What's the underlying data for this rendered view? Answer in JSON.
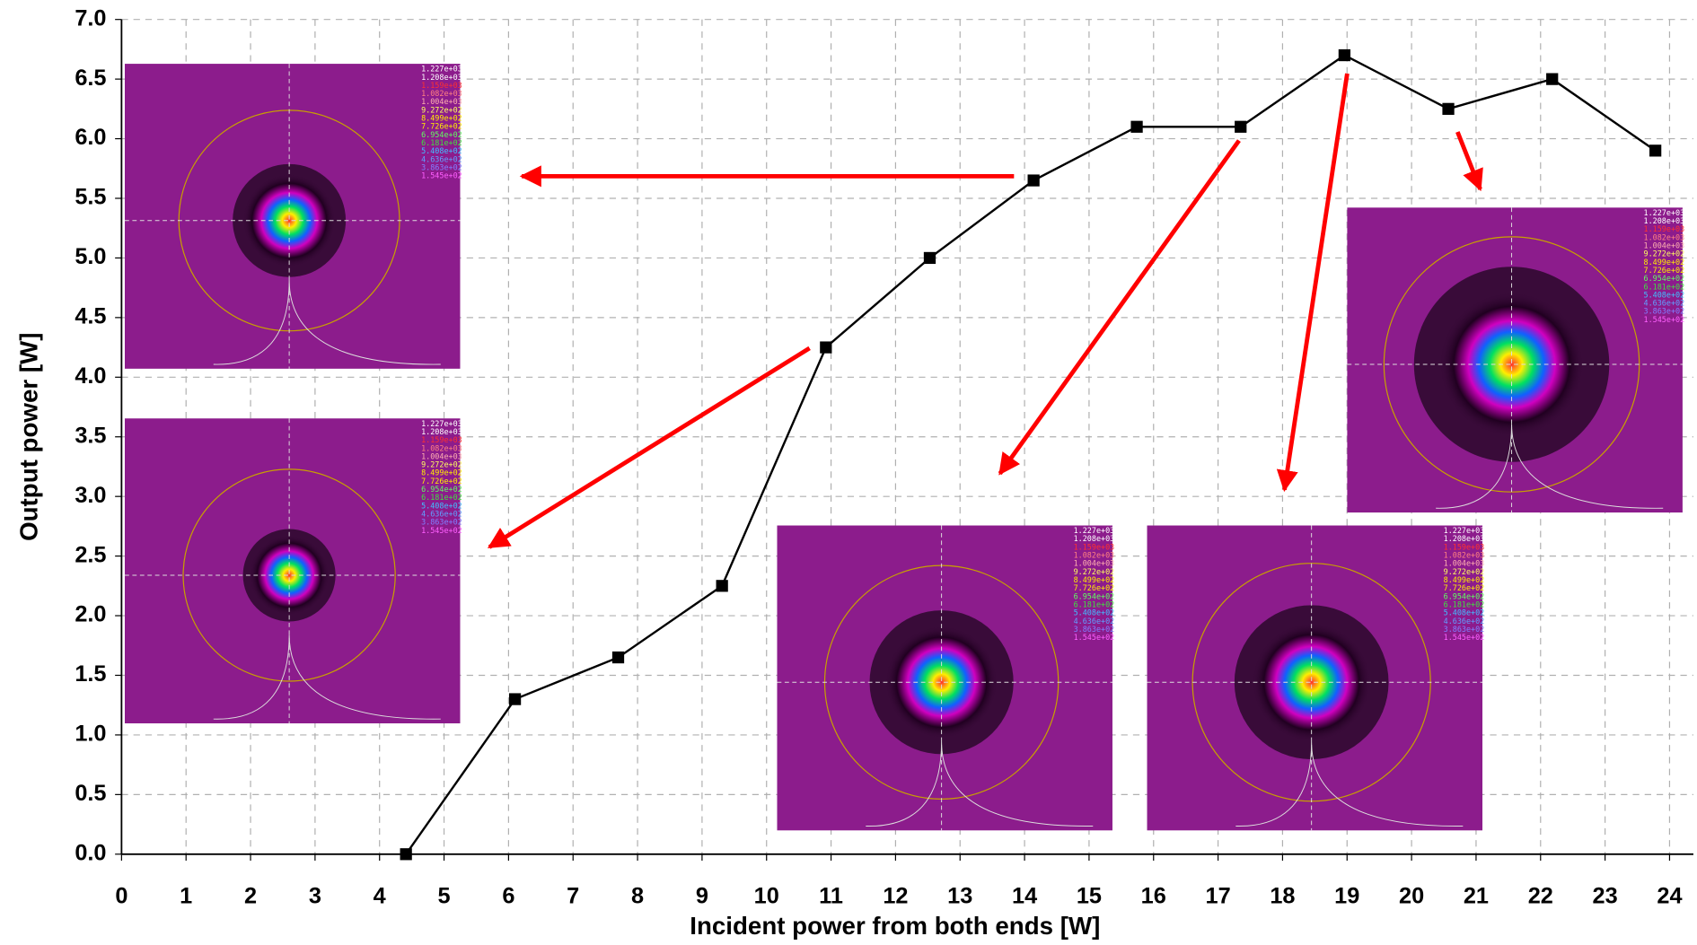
{
  "chart_data": {
    "type": "line",
    "x_label": "Incident power from both ends [W]",
    "y_label": "Output power [W]",
    "series": [
      {
        "color": "#000000",
        "x": [
          4.41,
          6.1,
          7.7,
          9.31,
          10.92,
          12.53,
          14.14,
          15.74,
          17.35,
          18.96,
          20.57,
          22.18,
          23.78
        ],
        "values": [
          0,
          1.3,
          1.65,
          2.25,
          4.25,
          5.0,
          5.65,
          6.1,
          6.1,
          6.7,
          6.25,
          6.5,
          5.9
        ]
      }
    ],
    "xlim": [
      0,
      24
    ],
    "xticks": [
      0,
      1,
      2,
      3,
      4,
      5,
      6,
      7,
      8,
      9,
      10,
      11,
      12,
      13,
      14,
      15,
      16,
      17,
      18,
      19,
      20,
      21,
      22,
      23,
      24
    ],
    "ylim": [
      0,
      7
    ],
    "yticks": [
      {
        "value": 0,
        "label": "0.0"
      },
      {
        "value": 0.5,
        "label": "0.5"
      },
      {
        "value": 1,
        "label": "1.0"
      },
      {
        "value": 1.5,
        "label": "1.5"
      },
      {
        "value": 2,
        "label": "2.0"
      },
      {
        "value": 2.5,
        "label": "2.5"
      },
      {
        "value": 3,
        "label": "3.0"
      },
      {
        "value": 3.5,
        "label": "3.5"
      },
      {
        "value": 4,
        "label": "4.0"
      },
      {
        "value": 4.5,
        "label": "4.5"
      },
      {
        "value": 5,
        "label": "5.0"
      },
      {
        "value": 5.5,
        "label": "5.5"
      },
      {
        "value": 6,
        "label": "6.0"
      },
      {
        "value": 6.5,
        "label": "6.5"
      },
      {
        "value": 7,
        "label": "7.0"
      }
    ],
    "grid": true,
    "inset_scale_labels": [
      "1.227e+03",
      "1.208e+03",
      "1.159e+03",
      "1.082e+03",
      "1.004e+03",
      "9.272e+02",
      "8.499e+02",
      "7.726e+02",
      "6.954e+02",
      "6.181e+02",
      "5.408e+02",
      "4.636e+02",
      "3.863e+02",
      "1.545e+02"
    ]
  }
}
